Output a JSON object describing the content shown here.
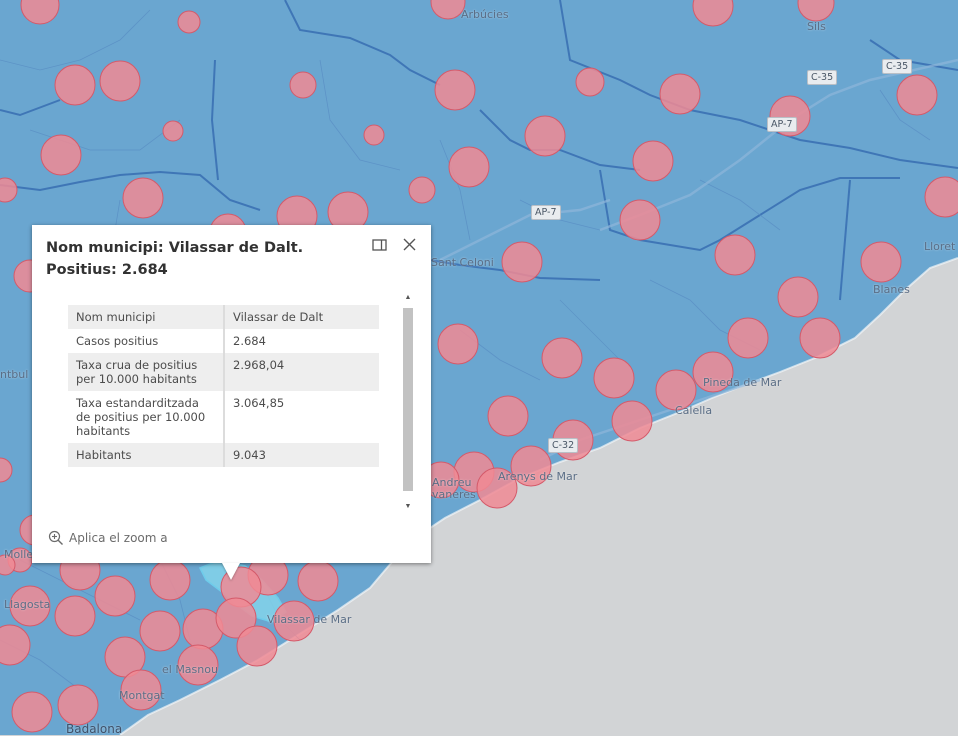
{
  "colors": {
    "land": "#6aa6d0",
    "sea": "#d2d4d6",
    "boundary": "#3f76b6",
    "circle_fill": "#f08a94",
    "circle_stroke": "#d45a6a"
  },
  "places": {
    "arbucies": "Arbúcies",
    "sils": "Sils",
    "sant_celoni": "Sant Celoni",
    "lloret": "Lloret",
    "blanes": "Blanes",
    "pineda": "Pineda de Mar",
    "calella": "Calella",
    "arenys": "Arenys de Mar",
    "sant_andreu": "Andreu",
    "llavaneres": "vaneres",
    "vilassar_mar": "Vilassar de Mar",
    "el_masnou": "el Masnou",
    "montgat": "Montgat",
    "badalona": "Badalona",
    "mollet": "Molle",
    "llagosta": "Llagosta",
    "granollers_frag": "ntbul"
  },
  "roads": {
    "c35_a": "C-35",
    "c35_b": "C-35",
    "ap7_a": "AP-7",
    "ap7_b": "AP-7",
    "c32": "C-32"
  },
  "popup": {
    "title": "Nom municipi: Vilassar de Dalt. Positius: 2.684",
    "dock_icon": "dock-icon",
    "close_icon": "close-icon",
    "zoom_label": "Aplica el zoom a",
    "rows": [
      {
        "key": "Nom municipi",
        "value": "Vilassar de Dalt"
      },
      {
        "key": "Casos positius",
        "value": "2.684"
      },
      {
        "key": "Taxa crua de positius per 10.000 habitants",
        "value": "2.968,04"
      },
      {
        "key": "Taxa estandarditzada de positius per 10.000 habitants",
        "value": "3.064,85"
      },
      {
        "key": "Habitants",
        "value": "9.043"
      }
    ]
  }
}
